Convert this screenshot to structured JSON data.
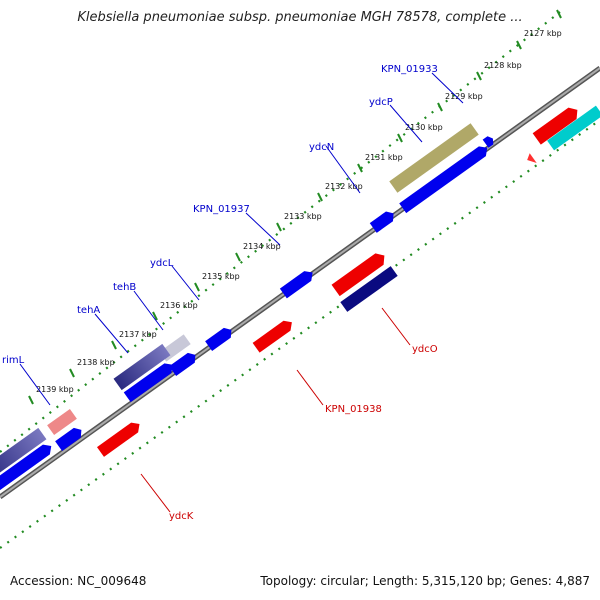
{
  "title": "Klebsiella pneumoniae subsp. pneumoniae MGH 78578, complete ...",
  "footer": {
    "accession_label": "Accession:",
    "accession": "NC_009648",
    "topology_text": "Topology: circular; Length: 5,315,120 bp; Genes: 4,887"
  },
  "ticks": [
    "2127 kbp",
    "2128 kbp",
    "2129 kbp",
    "2130 kbp",
    "2131 kbp",
    "2132 kbp",
    "2133 kbp",
    "2134 kbp",
    "2135 kbp",
    "2136 kbp",
    "2137 kbp",
    "2138 kbp",
    "2139 kbp"
  ],
  "gene_labels_top": [
    "KPN_01933",
    "ydcP",
    "ydcN",
    "KPN_01937",
    "ydcL",
    "tehB",
    "tehA",
    "rimL"
  ],
  "gene_labels_bottom": [
    "ydcO",
    "KPN_01938",
    "ydcK"
  ],
  "colors": {
    "forward": "#0000ee",
    "reverse": "#ee0000",
    "dark": "#0a0a80",
    "cds_hit": "#b0a868",
    "cyan": "#00cccc",
    "label_top": "#0000cc",
    "label_bottom": "#cc0000",
    "backbone": "#8a8a8a",
    "dotted": "#228b22"
  }
}
